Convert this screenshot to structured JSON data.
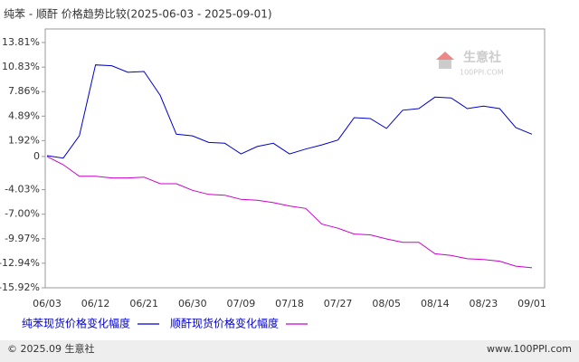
{
  "chart_data": {
    "type": "line",
    "title": "纯苯 - 顺酐 价格趋势比较(2025-06-03 - 2025-09-01)",
    "categories": [
      "06/03",
      null,
      null,
      "06/12",
      null,
      null,
      "06/21",
      null,
      null,
      "06/30",
      null,
      null,
      "07/09",
      null,
      null,
      "07/18",
      null,
      null,
      "07/27",
      null,
      null,
      "08/05",
      null,
      null,
      "08/14",
      null,
      null,
      "08/23",
      null,
      null,
      "09/01"
    ],
    "series": [
      {
        "name": "纯苯现货价格变化幅度",
        "color": "#0000cc",
        "values": [
          0.1,
          -0.2,
          2.5,
          11.1,
          11.0,
          10.2,
          10.3,
          7.4,
          2.7,
          2.5,
          1.7,
          1.6,
          0.3,
          1.2,
          1.6,
          0.3,
          0.9,
          1.4,
          2.0,
          4.7,
          4.6,
          3.4,
          5.6,
          5.8,
          7.2,
          7.1,
          5.8,
          6.1,
          5.8,
          3.5,
          2.7
        ]
      },
      {
        "name": "顺酐现货价格变化幅度",
        "color": "#cc00cc",
        "values": [
          0,
          -1.0,
          -2.4,
          -2.4,
          -2.6,
          -2.6,
          -2.5,
          -3.3,
          -3.3,
          -4.1,
          -4.6,
          -4.7,
          -5.2,
          -5.3,
          -5.6,
          -6.0,
          -6.3,
          -8.2,
          -8.7,
          -9.4,
          -9.5,
          -10.0,
          -10.4,
          -10.4,
          -11.8,
          -12.0,
          -12.4,
          -12.5,
          -12.7,
          -13.3,
          -13.5
        ]
      }
    ],
    "ylim": [
      -15.92,
      13.81
    ],
    "yticks": [
      {
        "value": 13.81,
        "label": "13.81%"
      },
      {
        "value": 10.83,
        "label": "10.83%"
      },
      {
        "value": 7.86,
        "label": "7.86%"
      },
      {
        "value": 4.89,
        "label": "4.89%"
      },
      {
        "value": 1.92,
        "label": "1.92%"
      },
      0,
      {
        "value": -4.03,
        "label": "-4.03%"
      },
      {
        "value": -7.0,
        "label": "-7.00%"
      },
      {
        "value": -9.97,
        "label": "-9.97%"
      },
      {
        "value": -12.94,
        "label": "-12.94%"
      },
      {
        "value": -15.92,
        "label": "-15.92%"
      }
    ],
    "grid": false,
    "watermark": "生意社",
    "watermark_sub": "100PPI.COM",
    "footer_left": "© 2025.09 生意社",
    "footer_right": "www.100PPI.com"
  }
}
